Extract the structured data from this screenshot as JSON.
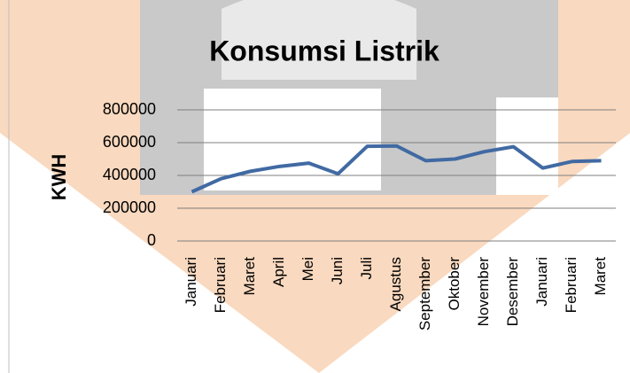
{
  "chart_data": {
    "type": "line",
    "title": "Konsumsi Listrik",
    "y_label": "KWH",
    "categories": [
      "Januari",
      "Februari",
      "Maret",
      "April",
      "Mei",
      "Juni",
      "Juli",
      "Agustus",
      "September",
      "Oktober",
      "November",
      "Desember",
      "Januari",
      "Februari",
      "Maret"
    ],
    "values": [
      300000,
      380000,
      425000,
      455000,
      475000,
      410000,
      578000,
      580000,
      490000,
      500000,
      545000,
      575000,
      445000,
      485000,
      490000
    ],
    "color": "#416aa3",
    "ylim": [
      0,
      800000
    ],
    "yticks": [
      0,
      200000,
      400000,
      600000,
      800000
    ],
    "grid": true
  }
}
